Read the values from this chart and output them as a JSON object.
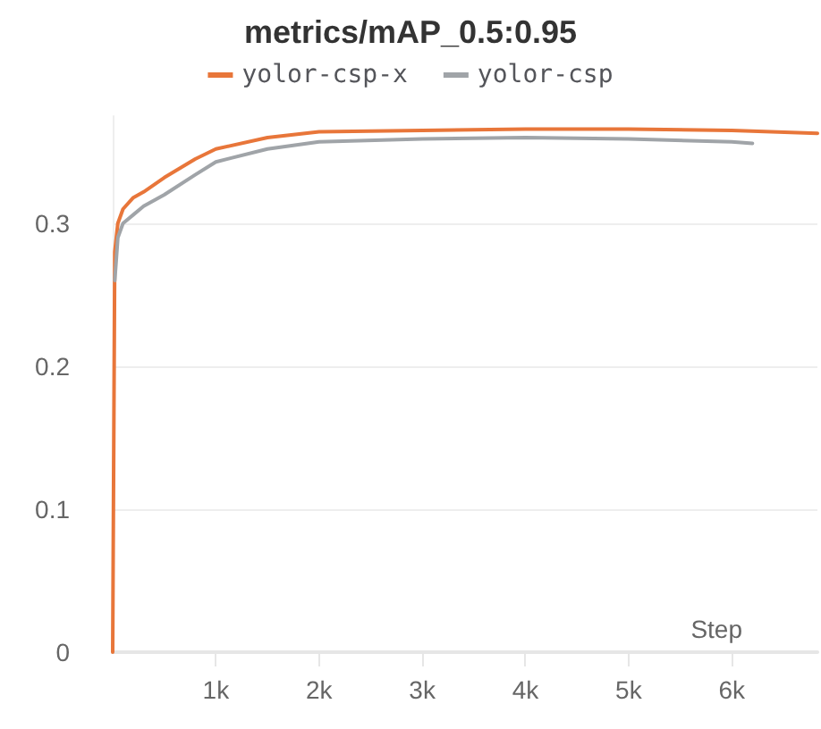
{
  "chart_data": {
    "type": "line",
    "title": "metrics/mAP_0.5:0.95",
    "xlabel": "Step",
    "xlim": [
      0,
      6830
    ],
    "xticks": [
      {
        "value": 1000,
        "label": "1k"
      },
      {
        "value": 2000,
        "label": "2k"
      },
      {
        "value": 3000,
        "label": "3k"
      },
      {
        "value": 4000,
        "label": "4k"
      },
      {
        "value": 5000,
        "label": "5k"
      },
      {
        "value": 6000,
        "label": "6k"
      }
    ],
    "ylim": [
      0,
      0.375
    ],
    "yticks": [
      0,
      0.1,
      0.2,
      0.3
    ],
    "grid": "y",
    "legend": "top",
    "marker": "none",
    "line_style": "solid",
    "series": [
      {
        "name": "yolor-csp-x",
        "color": "#e8763a",
        "x": [
          0,
          20,
          50,
          100,
          200,
          300,
          500,
          800,
          1000,
          1500,
          2000,
          3000,
          4000,
          5000,
          6000,
          6830
        ],
        "values": [
          0,
          0.28,
          0.3,
          0.31,
          0.318,
          0.322,
          0.332,
          0.345,
          0.352,
          0.36,
          0.364,
          0.365,
          0.366,
          0.366,
          0.365,
          0.363
        ]
      },
      {
        "name": "yolor-csp",
        "color": "#a0a4a8",
        "x": [
          20,
          50,
          100,
          200,
          300,
          500,
          800,
          1000,
          1500,
          2000,
          3000,
          4000,
          5000,
          6000,
          6200
        ],
        "values": [
          0.26,
          0.29,
          0.3,
          0.306,
          0.312,
          0.32,
          0.334,
          0.343,
          0.352,
          0.357,
          0.359,
          0.36,
          0.359,
          0.357,
          0.356
        ]
      }
    ]
  }
}
